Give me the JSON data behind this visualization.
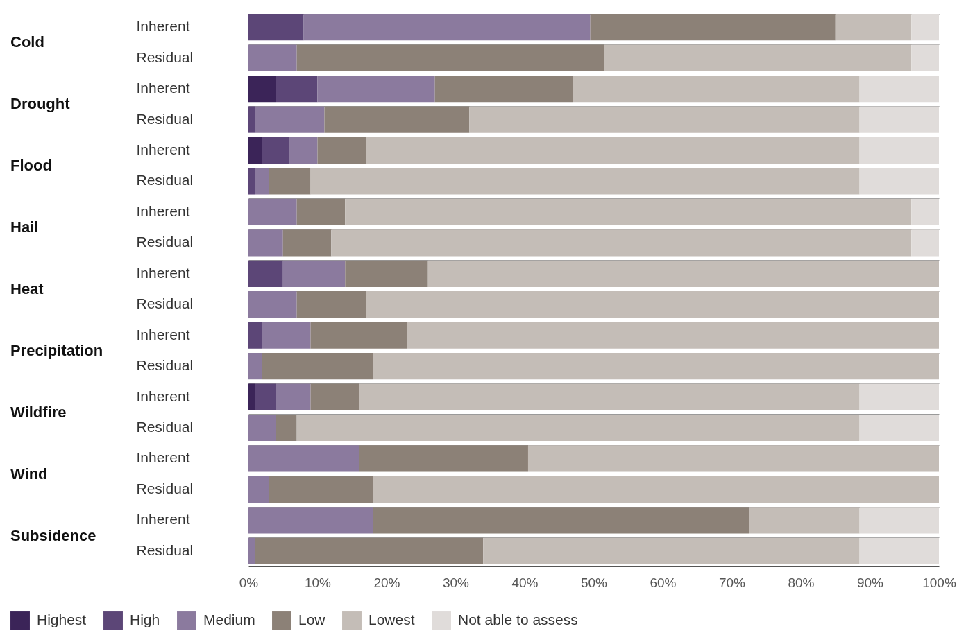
{
  "chart_data": {
    "type": "bar",
    "orientation": "horizontal",
    "stacked": true,
    "categories": [
      "Inherent",
      "Residual",
      "Inherent",
      "Residual",
      "Inherent",
      "Residual",
      "Inherent",
      "Residual",
      "Inherent",
      "Residual",
      "Inherent",
      "Residual",
      "Inherent",
      "Residual",
      "Inherent",
      "Residual",
      "Inherent",
      "Residual"
    ],
    "annotations": [
      "Cold",
      "Drought",
      "Flood",
      "Hail",
      "Heat",
      "Precipitation",
      "Wildfire",
      "Wind",
      "Subsidence"
    ],
    "series": [
      {
        "name": "Highest",
        "color": "#3b2458",
        "values": [
          0,
          0,
          4,
          0,
          2,
          0,
          0,
          0,
          0,
          0,
          0,
          0,
          1,
          0,
          0,
          0,
          0,
          0
        ]
      },
      {
        "name": "High",
        "color": "#5c4677",
        "values": [
          8,
          0,
          6,
          1,
          4,
          1,
          0,
          0,
          5,
          0,
          2,
          0,
          3,
          0,
          0,
          0,
          0,
          0
        ]
      },
      {
        "name": "Medium",
        "color": "#8b7a9e",
        "values": [
          41.5,
          7,
          17,
          10,
          4,
          2,
          7,
          5,
          9,
          7,
          7,
          2,
          5,
          4,
          16,
          3,
          18,
          1
        ]
      },
      {
        "name": "Low",
        "color": "#8c8177",
        "values": [
          35.5,
          44.5,
          20,
          21,
          7,
          6,
          7,
          7,
          12,
          10,
          14,
          16,
          7,
          3,
          24.5,
          15,
          54.5,
          33
        ]
      },
      {
        "name": "Lowest",
        "color": "#c4bdb7",
        "values": [
          11,
          44.5,
          41.5,
          56.5,
          71.5,
          79.5,
          82,
          84,
          74,
          83,
          77,
          82,
          72.5,
          81.5,
          59.5,
          82,
          16,
          54.5
        ]
      },
      {
        "name": "Not able to assess",
        "color": "#e0dcda",
        "values": [
          4,
          4,
          11.5,
          11.5,
          11.5,
          11.5,
          4,
          4,
          0,
          0,
          0,
          0,
          11.5,
          11.5,
          0,
          0,
          11.5,
          11.5
        ]
      }
    ],
    "xlim": [
      0,
      100
    ],
    "xticks": [
      {
        "value": 0,
        "label": "0%"
      },
      {
        "value": 10,
        "label": "10%"
      },
      {
        "value": 20,
        "label": "20%"
      },
      {
        "value": 30,
        "label": "30%"
      },
      {
        "value": 40,
        "label": "40%"
      },
      {
        "value": 50,
        "label": "50%"
      },
      {
        "value": 60,
        "label": "60%"
      },
      {
        "value": 70,
        "label": "70%"
      },
      {
        "value": 80,
        "label": "80%"
      },
      {
        "value": 90,
        "label": "90%"
      },
      {
        "value": 100,
        "label": "100%"
      }
    ],
    "grid": "y",
    "legend": "bottom"
  }
}
